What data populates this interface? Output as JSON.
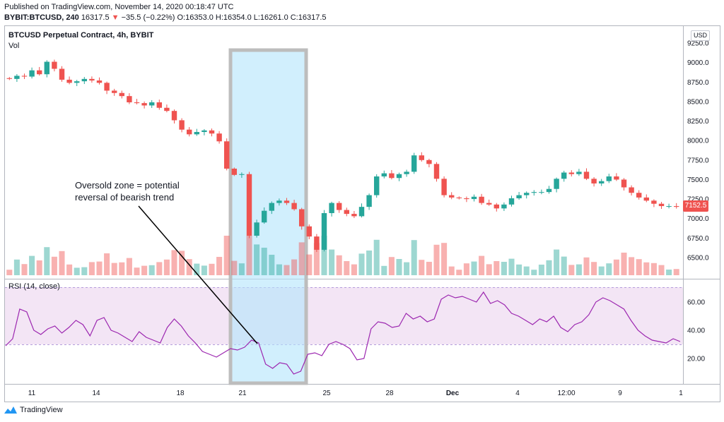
{
  "header": {
    "published": "Published on TradingView.com, November 14, 2020 00:18:47 UTC",
    "symbol": "BYBIT:BTCUSD, 240",
    "last": "16317.5",
    "change_arrow": "▼",
    "change": "−35.5 (−0.22%)",
    "ohlc": "O:16353.0 H:16354.0 L:16261.0 C:16317.5"
  },
  "main_pane": {
    "title": "BTCUSD Perpetual Contract, 4h, BYBIT",
    "vol_label": "Vol",
    "currency": "USD",
    "last_price_tag": "7152.5"
  },
  "rsi_pane": {
    "title": "RSI (14, close)"
  },
  "annotation": {
    "line1": "Oversold zone = potential",
    "line2": "reversal of bearish trend"
  },
  "footer": {
    "brand": "TradingView"
  },
  "colors": {
    "up": "#26a69a",
    "down": "#ef5350",
    "rsi_line": "#9c27b0",
    "rsi_band": "#e1bee7",
    "highlight": "#b3e5fc"
  },
  "chart_data": [
    {
      "type": "candlestick",
      "title": "BTCUSD Perpetual Contract, 4h, BYBIT",
      "x_ticks": [
        "11",
        "14",
        "18",
        "21",
        "25",
        "28",
        "Dec",
        "4",
        "12:00",
        "9",
        "1"
      ],
      "ylim": [
        6400,
        9300
      ],
      "y_ticks": [
        "9250.0",
        "9000.0",
        "8750.0",
        "8500.0",
        "8250.0",
        "8000.0",
        "7750.0",
        "7500.0",
        "7250.0",
        "7000.0",
        "6750.0",
        "6500.0"
      ],
      "close_path": [
        8790,
        8830,
        8820,
        8900,
        8850,
        9010,
        8920,
        8780,
        8740,
        8760,
        8790,
        8770,
        8740,
        8640,
        8610,
        8570,
        8490,
        8480,
        8450,
        8490,
        8420,
        8380,
        8260,
        8140,
        8080,
        8110,
        8130,
        8090,
        7990,
        7640,
        7560,
        7570,
        6780,
        6950,
        7100,
        7200,
        7230,
        7200,
        7120,
        6900,
        6770,
        6600,
        7070,
        7200,
        7110,
        7060,
        7030,
        7150,
        7300,
        7540,
        7580,
        7520,
        7570,
        7600,
        7810,
        7750,
        7700,
        7510,
        7300,
        7270,
        7260,
        7250,
        7280,
        7200,
        7180,
        7130,
        7180,
        7260,
        7300,
        7330,
        7340,
        7340,
        7380,
        7510,
        7590,
        7570,
        7600,
        7510,
        7450,
        7480,
        7540,
        7500,
        7400,
        7330,
        7270,
        7230,
        7190,
        7160,
        7160,
        7150
      ]
    },
    {
      "type": "line",
      "title": "RSI (14, close)",
      "ylim": [
        5,
        75
      ],
      "y_ticks": [
        "60.00",
        "40.00",
        "20.00"
      ],
      "bands": [
        30,
        70
      ],
      "values": [
        29,
        34,
        55,
        53,
        40,
        37,
        41,
        43,
        38,
        42,
        47,
        44,
        36,
        47,
        49,
        40,
        38,
        35,
        32,
        39,
        35,
        33,
        31,
        42,
        48,
        43,
        36,
        31,
        25,
        23,
        21,
        24,
        27,
        26,
        28,
        33,
        31,
        16,
        13,
        17,
        16,
        9,
        11,
        23,
        24,
        22,
        30,
        32,
        30,
        27,
        19,
        20,
        41,
        46,
        45,
        42,
        43,
        52,
        48,
        50,
        46,
        48,
        62,
        65,
        63,
        64,
        62,
        60,
        67,
        59,
        61,
        58,
        52,
        50,
        47,
        44,
        48,
        46,
        50,
        42,
        39,
        44,
        46,
        51,
        60,
        63,
        61,
        58,
        55,
        47,
        40,
        36,
        33,
        32,
        31,
        34,
        32
      ]
    }
  ]
}
